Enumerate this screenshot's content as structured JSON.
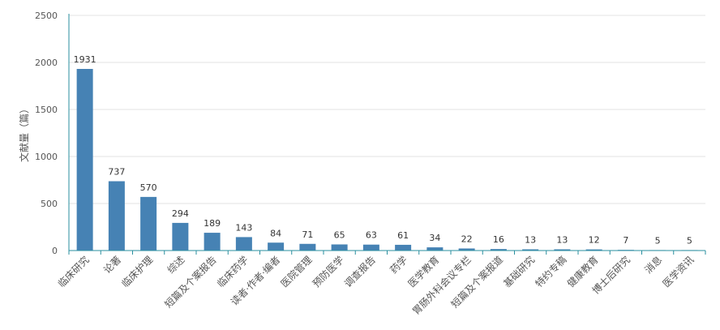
{
  "chart_data": {
    "type": "bar",
    "title": "",
    "xlabel": "",
    "ylabel": "文献量（篇）",
    "ylim": [
      0,
      2500
    ],
    "yticks": [
      0,
      500,
      1000,
      1500,
      2000,
      2500
    ],
    "grid": true,
    "categories": [
      "临床研究",
      "论著",
      "临床护理",
      "综述",
      "短篇及个案报告",
      "临床药学",
      "读者·作者·编者",
      "医院管理",
      "预防医学",
      "调查报告",
      "药学",
      "医学教育",
      "胃肠外科会议专栏",
      "短篇及个案报道",
      "基础研究",
      "特约专稿",
      "健康教育",
      "博士后研究",
      "消息",
      "医学资讯"
    ],
    "values": [
      1931,
      737,
      570,
      294,
      189,
      143,
      84,
      71,
      65,
      63,
      61,
      34,
      22,
      16,
      13,
      13,
      12,
      7,
      5,
      5
    ],
    "colors": {
      "bar": "#4682b4",
      "axis": "#2a8f9f",
      "grid": "#e3e3e3",
      "text": "#555555",
      "label": "#333333"
    }
  }
}
